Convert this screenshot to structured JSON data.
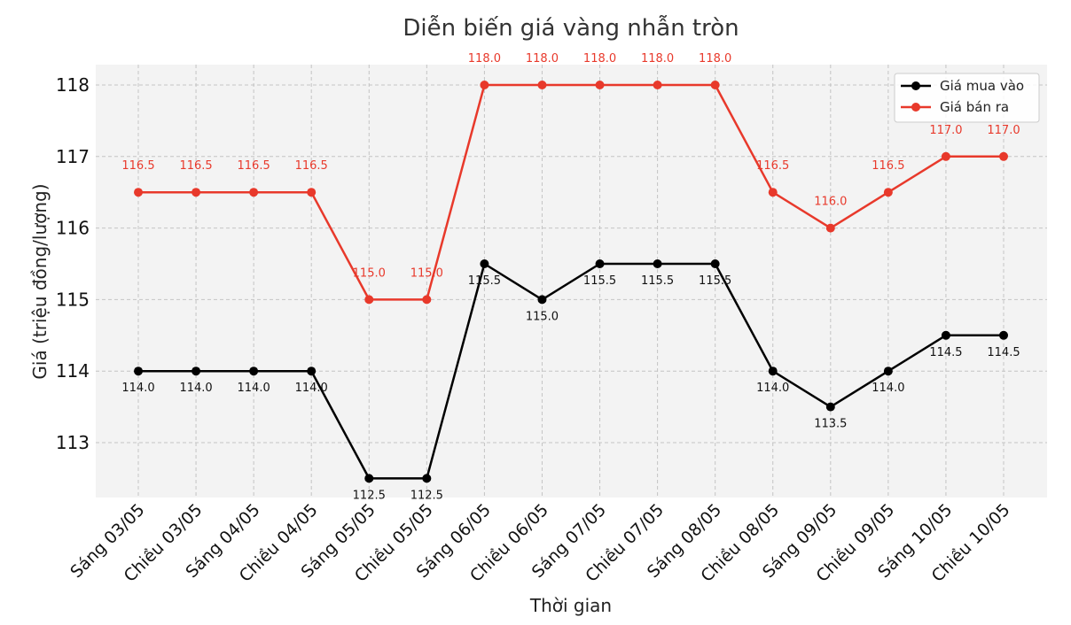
{
  "chart_data": {
    "type": "line",
    "title": "Diễn biến giá vàng nhẫn tròn",
    "xlabel": "Thời gian",
    "ylabel": "Giá (triệu đồng/lượng)",
    "categories": [
      "Sáng 03/05",
      "Chiều 03/05",
      "Sáng 04/05",
      "Chiều 04/05",
      "Sáng 05/05",
      "Chiều 05/05",
      "Sáng 06/05",
      "Chiều 06/05",
      "Sáng 07/05",
      "Chiều 07/05",
      "Sáng 08/05",
      "Chiều 08/05",
      "Sáng 09/05",
      "Chiều 09/05",
      "Sáng 10/05",
      "Chiều 10/05"
    ],
    "series": [
      {
        "name": "Giá mua vào",
        "color": "#000000",
        "values": [
          114.0,
          114.0,
          114.0,
          114.0,
          112.5,
          112.5,
          115.5,
          115.0,
          115.5,
          115.5,
          115.5,
          114.0,
          113.5,
          114.0,
          114.5,
          114.5
        ],
        "labels": [
          "114.0",
          "114.0",
          "114.0",
          "114.0",
          "112.5",
          "112.5",
          "115.5",
          "115.0",
          "115.5",
          "115.5",
          "115.5",
          "114.0",
          "113.5",
          "114.0",
          "114.5",
          "114.5"
        ]
      },
      {
        "name": "Giá bán ra",
        "color": "#e8392b",
        "values": [
          116.5,
          116.5,
          116.5,
          116.5,
          115.0,
          115.0,
          118.0,
          118.0,
          118.0,
          118.0,
          118.0,
          116.5,
          116.0,
          116.5,
          117.0,
          117.0
        ],
        "labels": [
          "116.5",
          "116.5",
          "116.5",
          "116.5",
          "115.0",
          "115.0",
          "118.0",
          "118.0",
          "118.0",
          "118.0",
          "118.0",
          "116.5",
          "116.0",
          "116.5",
          "117.0",
          "117.0"
        ]
      }
    ],
    "yticks": [
      "113",
      "114",
      "115",
      "116",
      "117",
      "118"
    ],
    "ylim": [
      112.3,
      118.3
    ],
    "grid": true,
    "legend": "top-right",
    "plot_background": "#f3f3f3"
  }
}
